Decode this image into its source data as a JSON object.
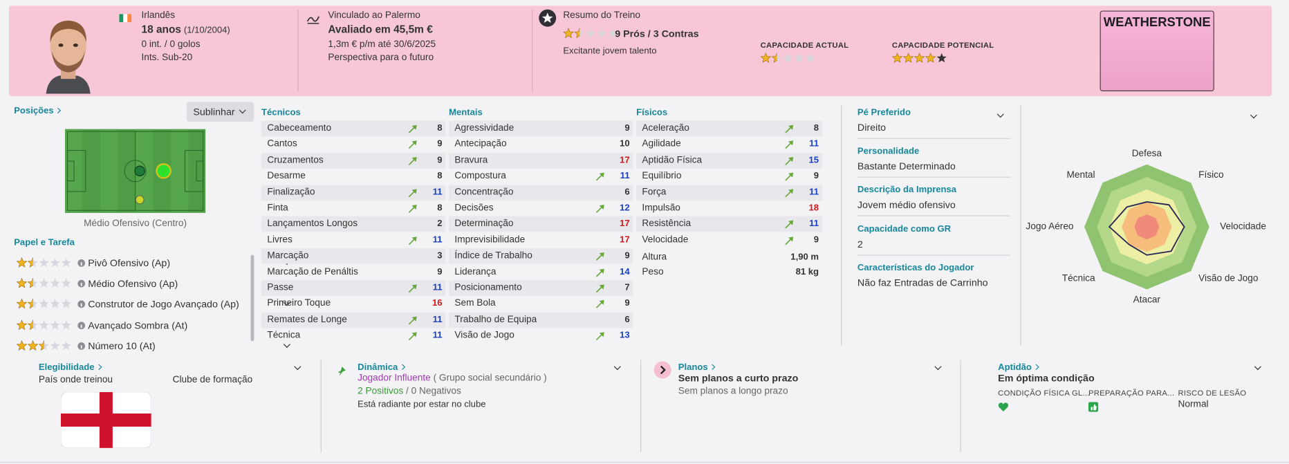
{
  "header": {
    "nationality": "Irlandês",
    "age": "18 anos",
    "birth_date": "(1/10/2004)",
    "caps": "0 int. / 0 golos",
    "youth_caps": "Ints. Sub-20",
    "contract": "Vinculado ao Palermo",
    "value": "Avaliado em 45,5m €",
    "wage": "1,3m € p/m até 30/6/2025",
    "prospect": "Perspectiva para o futuro",
    "training": {
      "title": "Resumo do Treino",
      "stars": 1.5,
      "pros_cons": "9 Prós / 3 Contras",
      "note": "Excitante jovem talento"
    },
    "current_ability": {
      "label": "CAPACIDADE ACTUAL",
      "stars": 1.5,
      "empty_color": "#d9d7dd"
    },
    "potential_ability": {
      "label": "CAPACIDADE POTENCIAL",
      "stars": 4,
      "empty_color": "#333333"
    },
    "kit_name": "WEATHERSTONE"
  },
  "positions": {
    "title": "Posições",
    "highlight": "Sublinhar",
    "position": "Médio Ofensivo (Centro)"
  },
  "roles": {
    "title": "Papel e Tarefa",
    "items": [
      {
        "name": "Pivô Ofensivo (Ap)",
        "stars": 1.5
      },
      {
        "name": "Médio Ofensivo (Ap)",
        "stars": 1.5
      },
      {
        "name": "Construtor de Jogo Avançado (Ap)",
        "stars": 1.5
      },
      {
        "name": "Avançado Sombra (At)",
        "stars": 1.5
      },
      {
        "name": "Número 10 (At)",
        "stars": 2.5
      }
    ]
  },
  "attributes": {
    "columns": [
      {
        "title": "Técnicos",
        "items": [
          {
            "name": "Cabeceamento",
            "value": 8,
            "up": true
          },
          {
            "name": "Cantos",
            "value": 9,
            "up": true
          },
          {
            "name": "Cruzamentos",
            "value": 9,
            "up": true
          },
          {
            "name": "Desarme",
            "value": 8,
            "up": false
          },
          {
            "name": "Finalização",
            "value": 11,
            "up": true
          },
          {
            "name": "Finta",
            "value": 8,
            "up": true
          },
          {
            "name": "Lançamentos Longos",
            "value": 2,
            "up": false
          },
          {
            "name": "Livres",
            "value": 11,
            "up": true
          },
          {
            "name": "Marcação",
            "value": 3,
            "up": false
          },
          {
            "name": "Marcação de Penáltis",
            "value": 9,
            "up": false
          },
          {
            "name": "Passe",
            "value": 11,
            "up": true
          },
          {
            "name": "Primeiro Toque",
            "value": 16,
            "up": false
          },
          {
            "name": "Remates de Longe",
            "value": 11,
            "up": true
          },
          {
            "name": "Técnica",
            "value": 11,
            "up": true
          }
        ]
      },
      {
        "title": "Mentais",
        "items": [
          {
            "name": "Agressividade",
            "value": 9,
            "up": false
          },
          {
            "name": "Antecipação",
            "value": 10,
            "up": false
          },
          {
            "name": "Bravura",
            "value": 17,
            "up": false
          },
          {
            "name": "Compostura",
            "value": 11,
            "up": true
          },
          {
            "name": "Concentração",
            "value": 6,
            "up": false
          },
          {
            "name": "Decisões",
            "value": 12,
            "up": true
          },
          {
            "name": "Determinação",
            "value": 17,
            "up": false
          },
          {
            "name": "Imprevisibilidade",
            "value": 17,
            "up": false
          },
          {
            "name": "Índice de Trabalho",
            "value": 9,
            "up": true
          },
          {
            "name": "Liderança",
            "value": 14,
            "up": true
          },
          {
            "name": "Posicionamento",
            "value": 7,
            "up": true
          },
          {
            "name": "Sem Bola",
            "value": 9,
            "up": true
          },
          {
            "name": "Trabalho de Equipa",
            "value": 6,
            "up": false
          },
          {
            "name": "Visão de Jogo",
            "value": 13,
            "up": true
          }
        ]
      },
      {
        "title": "Físicos",
        "items": [
          {
            "name": "Aceleração",
            "value": 8,
            "up": true
          },
          {
            "name": "Agilidade",
            "value": 11,
            "up": true
          },
          {
            "name": "Aptidão Física",
            "value": 15,
            "up": true
          },
          {
            "name": "Equilíbrio",
            "value": 9,
            "up": true
          },
          {
            "name": "Força",
            "value": 11,
            "up": true
          },
          {
            "name": "Impulsão",
            "value": 18,
            "up": false
          },
          {
            "name": "Resistência",
            "value": 11,
            "up": true
          },
          {
            "name": "Velocidade",
            "value": 9,
            "up": true
          }
        ]
      }
    ],
    "height": {
      "label": "Altura",
      "value": "1,90 m"
    },
    "weight": {
      "label": "Peso",
      "value": "81 kg"
    }
  },
  "info": {
    "items": [
      {
        "label": "Pé Preferido",
        "value": "Direito"
      },
      {
        "label": "Personalidade",
        "value": "Bastante Determinado"
      },
      {
        "label": "Descrição da Imprensa",
        "value": "Jovem médio ofensivo"
      },
      {
        "label": "Capacidade como GR",
        "value": 2
      },
      {
        "label": "Características do Jogador",
        "value": "Não faz Entradas de Carrinho"
      }
    ]
  },
  "radar": {
    "labels": [
      "Defesa",
      "Físico",
      "Velocidade",
      "Visão de Jogo",
      "Atacar",
      "Técnica",
      "Jogo Aéreo",
      "Mental"
    ],
    "values": [
      8,
      10,
      12,
      11,
      9,
      8,
      12,
      9
    ],
    "rlim": [
      0,
      20
    ],
    "line_color": "#2b2a57"
  },
  "eligibility": {
    "title": "Elegibilidade",
    "trained_in": "País onde treinou",
    "youth_club": "Clube de formação"
  },
  "dynamics": {
    "title": "Dinâmica",
    "status": "Jogador Influente",
    "group": "( Grupo social secundário )",
    "positives": "2 Positivos",
    "separator": "/",
    "negatives": "0 Negativos",
    "mood": "Está radiante por estar no clube"
  },
  "plans": {
    "title": "Planos",
    "short_term": "Sem planos a curto prazo",
    "long_term": "Sem planos a longo prazo"
  },
  "fitness": {
    "title": "Aptidão",
    "condition": "Em óptima condição",
    "labels": [
      "CONDIÇÃO FÍSICA GL...",
      "PREPARAÇÃO PARA...",
      "RISCO DE LESÃO"
    ],
    "injury_risk": "Normal"
  }
}
